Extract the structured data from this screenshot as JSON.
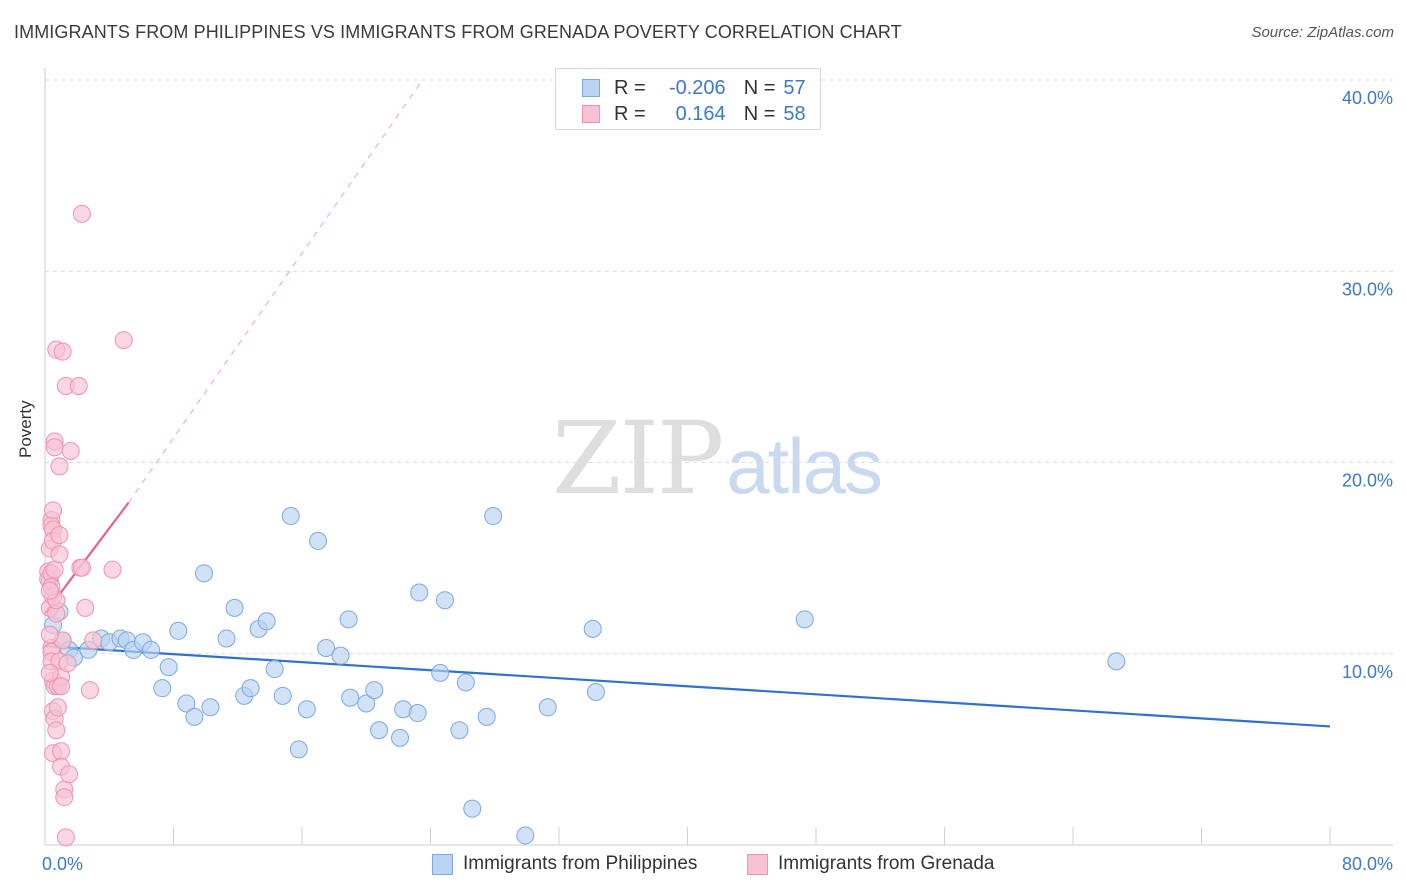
{
  "header": {
    "title": "IMMIGRANTS FROM PHILIPPINES VS IMMIGRANTS FROM GRENADA POVERTY CORRELATION CHART",
    "source": "Source: ZipAtlas.com"
  },
  "watermark": {
    "zip": "ZIP",
    "atlas": "atlas"
  },
  "legend": {
    "philippines": {
      "r_label": "R =",
      "r_value": "-0.206",
      "n_label": "N =",
      "n_value": "57"
    },
    "grenada": {
      "r_label": "R =",
      "r_value": "0.164",
      "n_label": "N =",
      "n_value": "58"
    }
  },
  "colors": {
    "blue_fill": "#b9d3f3",
    "blue_stroke": "#7ea8df",
    "blue_line": "#2f72cf",
    "pink_fill": "#f8c2d3",
    "pink_stroke": "#ee93b0",
    "pink_line": "#e8628c",
    "grid": "#dcdcdc",
    "axis_text": "#3d79c9"
  },
  "chart_data": {
    "type": "scatter",
    "title": "IMMIGRANTS FROM PHILIPPINES VS IMMIGRANTS FROM GRENADA POVERTY CORRELATION CHART",
    "xlabel": "",
    "ylabel": "Poverty",
    "xlim": [
      0,
      80
    ],
    "ylim": [
      0,
      40
    ],
    "x_tick_labels": [
      "0.0%",
      "80.0%"
    ],
    "y_ticks": [
      10,
      20,
      30,
      40
    ],
    "y_tick_labels": [
      "10.0%",
      "20.0%",
      "30.0%",
      "40.0%"
    ],
    "series": [
      {
        "name": "Immigrants from Philippines",
        "color": "#b9d3f3",
        "points": [
          [
            0.5,
            11.5
          ],
          [
            0.9,
            12.2
          ],
          [
            1.1,
            10.7
          ],
          [
            1.5,
            10.2
          ],
          [
            1.8,
            9.8
          ],
          [
            2.7,
            10.2
          ],
          [
            3.5,
            10.8
          ],
          [
            4.0,
            10.6
          ],
          [
            4.7,
            10.8
          ],
          [
            5.1,
            10.7
          ],
          [
            5.5,
            10.2
          ],
          [
            6.1,
            10.6
          ],
          [
            6.6,
            10.2
          ],
          [
            7.3,
            8.2
          ],
          [
            7.7,
            9.3
          ],
          [
            8.3,
            11.2
          ],
          [
            8.8,
            7.4
          ],
          [
            9.3,
            6.7
          ],
          [
            9.9,
            14.2
          ],
          [
            10.3,
            7.2
          ],
          [
            11.3,
            10.8
          ],
          [
            11.8,
            12.4
          ],
          [
            12.4,
            7.8
          ],
          [
            12.8,
            8.2
          ],
          [
            13.3,
            11.3
          ],
          [
            13.8,
            11.7
          ],
          [
            14.3,
            9.2
          ],
          [
            14.8,
            7.8
          ],
          [
            15.3,
            17.2
          ],
          [
            15.8,
            5.0
          ],
          [
            16.3,
            7.1
          ],
          [
            17.0,
            15.9
          ],
          [
            17.5,
            10.3
          ],
          [
            18.4,
            9.9
          ],
          [
            18.9,
            11.8
          ],
          [
            19.0,
            7.7
          ],
          [
            20.0,
            7.4
          ],
          [
            20.5,
            8.1
          ],
          [
            20.8,
            6.0
          ],
          [
            22.1,
            5.6
          ],
          [
            22.3,
            7.1
          ],
          [
            23.2,
            6.9
          ],
          [
            23.3,
            13.2
          ],
          [
            24.6,
            9.0
          ],
          [
            24.9,
            12.8
          ],
          [
            25.8,
            6.0
          ],
          [
            26.2,
            8.5
          ],
          [
            26.6,
            1.9
          ],
          [
            27.5,
            6.7
          ],
          [
            27.9,
            17.2
          ],
          [
            29.9,
            0.5
          ],
          [
            31.3,
            7.2
          ],
          [
            34.1,
            11.3
          ],
          [
            34.3,
            8.0
          ],
          [
            47.3,
            11.8
          ],
          [
            66.7,
            9.6
          ],
          [
            0.3,
            13.8
          ]
        ]
      },
      {
        "name": "Immigrants from Grenada",
        "color": "#f8c2d3",
        "points": [
          [
            0.2,
            14.3
          ],
          [
            0.2,
            13.9
          ],
          [
            0.3,
            12.4
          ],
          [
            0.3,
            15.5
          ],
          [
            0.4,
            17.0
          ],
          [
            0.4,
            16.7
          ],
          [
            0.4,
            14.2
          ],
          [
            0.4,
            10.3
          ],
          [
            0.4,
            10.1
          ],
          [
            0.4,
            9.6
          ],
          [
            0.5,
            17.5
          ],
          [
            0.5,
            16.5
          ],
          [
            0.5,
            15.9
          ],
          [
            0.5,
            13.0
          ],
          [
            0.5,
            8.6
          ],
          [
            0.5,
            7.0
          ],
          [
            0.5,
            4.8
          ],
          [
            0.6,
            21.1
          ],
          [
            0.6,
            20.8
          ],
          [
            0.6,
            14.4
          ],
          [
            0.6,
            8.3
          ],
          [
            0.6,
            6.6
          ],
          [
            0.7,
            25.9
          ],
          [
            0.7,
            12.1
          ],
          [
            0.7,
            6.0
          ],
          [
            0.8,
            8.3
          ],
          [
            0.8,
            7.2
          ],
          [
            0.9,
            19.8
          ],
          [
            0.9,
            16.2
          ],
          [
            0.9,
            15.2
          ],
          [
            0.9,
            9.6
          ],
          [
            1.0,
            8.8
          ],
          [
            1.0,
            8.3
          ],
          [
            1.0,
            4.9
          ],
          [
            1.0,
            4.1
          ],
          [
            1.1,
            25.8
          ],
          [
            1.1,
            10.7
          ],
          [
            1.2,
            2.9
          ],
          [
            1.2,
            2.5
          ],
          [
            1.3,
            24.0
          ],
          [
            1.3,
            0.4
          ],
          [
            1.4,
            9.5
          ],
          [
            1.5,
            3.7
          ],
          [
            1.6,
            20.6
          ],
          [
            2.1,
            24.0
          ],
          [
            2.2,
            14.5
          ],
          [
            2.3,
            14.5
          ],
          [
            2.3,
            33.0
          ],
          [
            2.5,
            12.4
          ],
          [
            2.8,
            8.1
          ],
          [
            3.0,
            10.7
          ],
          [
            4.2,
            14.4
          ],
          [
            4.9,
            26.4
          ],
          [
            0.3,
            11.0
          ],
          [
            0.3,
            9.0
          ],
          [
            0.7,
            12.8
          ],
          [
            0.4,
            13.5
          ],
          [
            0.3,
            13.3
          ]
        ]
      }
    ],
    "trendlines": [
      {
        "series": "Immigrants from Philippines",
        "x": [
          0.0,
          80.0
        ],
        "y": [
          10.4,
          6.2
        ],
        "style": "solid"
      },
      {
        "series": "Immigrants from Grenada",
        "x": [
          0.0,
          5.2
        ],
        "y": [
          12.1,
          17.9
        ],
        "style": "solid"
      },
      {
        "series": "Immigrants from Grenada",
        "x": [
          5.2,
          23.5
        ],
        "y": [
          17.9,
          40.0
        ],
        "style": "dashed"
      }
    ],
    "legend_position": "top-center"
  }
}
